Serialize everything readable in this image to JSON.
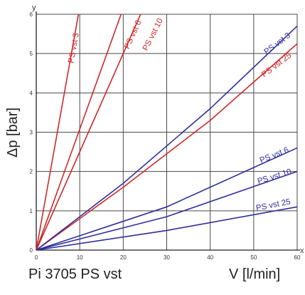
{
  "caption": "Pi 3705 PS vst",
  "chart_data": {
    "type": "line",
    "title": "",
    "xlabel": "V [l/min]",
    "ylabel": "Δp [bar]",
    "x_axis_letter": "x",
    "y_axis_letter": "y",
    "xlim": [
      0,
      60
    ],
    "ylim": [
      0,
      6
    ],
    "x_ticks": [
      0,
      10,
      20,
      30,
      40,
      50,
      60
    ],
    "y_ticks": [
      0,
      1,
      2,
      3,
      4,
      5,
      6
    ],
    "grid": true,
    "series": [
      {
        "name": "PS vst 3",
        "color": "#d02828",
        "x": [
          0,
          9.7
        ],
        "y": [
          0,
          6
        ]
      },
      {
        "name": "PS vst 6",
        "color": "#d02828",
        "x": [
          0,
          19.5
        ],
        "y": [
          0,
          6
        ]
      },
      {
        "name": "PS vst 10",
        "color": "#d02828",
        "x": [
          0,
          24
        ],
        "y": [
          0,
          6
        ]
      },
      {
        "name": "PS vst 25",
        "color": "#d02828",
        "x": [
          0,
          20,
          40,
          60
        ],
        "y": [
          0,
          1.6,
          3.3,
          5.25
        ]
      },
      {
        "name": "PS vst 3",
        "color": "#2e2e9e",
        "x": [
          0,
          20,
          40,
          60
        ],
        "y": [
          0,
          1.7,
          3.6,
          5.7
        ]
      },
      {
        "name": "PS vst 6",
        "color": "#2e2e9e",
        "x": [
          0,
          30,
          60
        ],
        "y": [
          0,
          1.1,
          2.6
        ]
      },
      {
        "name": "PS vst 10",
        "color": "#2e2e9e",
        "x": [
          0,
          30,
          60
        ],
        "y": [
          0,
          0.85,
          2.0
        ]
      },
      {
        "name": "PS vst 25",
        "color": "#2e2e9e",
        "x": [
          0,
          30,
          60
        ],
        "y": [
          0,
          0.5,
          1.1
        ]
      }
    ]
  }
}
